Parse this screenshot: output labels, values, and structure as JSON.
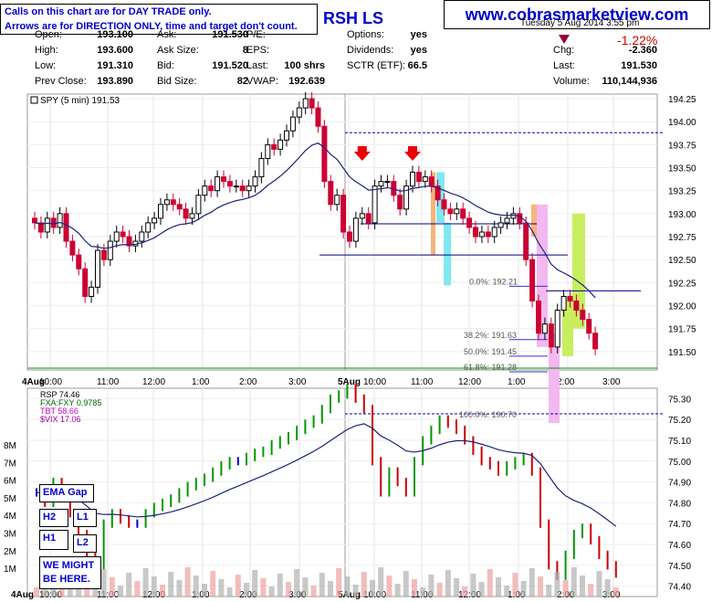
{
  "header": {
    "note_line1": "Calls on this chart are for DAY TRADE only.",
    "note_line2": "Arrows are for DIRECTION ONLY, time and target don't count.",
    "ticker": "RSH  LS",
    "website": "www.cobrasmarketview.com",
    "date_partial": "Tuesday 5 Aug 2014 3:55 pm",
    "change_pct": "-1.22%"
  },
  "quote": [
    {
      "label": "Open:",
      "value": "193.100"
    },
    {
      "label": "High:",
      "value": "193.600"
    },
    {
      "label": "Low:",
      "value": "191.310"
    },
    {
      "label": "Prev Close:",
      "value": "193.890"
    },
    {
      "label": "Ask:",
      "value": "191.530"
    },
    {
      "label": "Ask Size:",
      "value": "8"
    },
    {
      "label": "Bid:",
      "value": "191.520"
    },
    {
      "label": "Bid Size:",
      "value": "82"
    },
    {
      "label": "P/E:",
      "value": ""
    },
    {
      "label": "EPS:",
      "value": ""
    },
    {
      "label": "Last:",
      "value": "100 shrs"
    },
    {
      "label": "VWAP:",
      "value": "192.639"
    },
    {
      "label": "Options:",
      "value": "yes"
    },
    {
      "label": "Dividends:",
      "value": "yes"
    },
    {
      "label": "SCTR (ETF):",
      "value": "66.5"
    },
    {
      "label": "Chg:",
      "value": "-2.360"
    },
    {
      "label": "Last:",
      "value": "191.530"
    },
    {
      "label": "Volume:",
      "value": "110,144,936"
    }
  ],
  "annotations": {
    "ema_gap": "EMA Gap",
    "h2": "H2",
    "l1": "L1",
    "h1": "H1",
    "l2": "L2",
    "might_line1": "WE MIGHT",
    "might_line2": "BE HERE."
  },
  "colors": {
    "up": "#000000",
    "down": "#cc0033",
    "ema": "#1a237e",
    "rsp_up": "#009900",
    "rsp_down": "#cc0000",
    "rsp_flat": "#0000cc",
    "annotation": "#0000cc"
  },
  "chart_data": [
    {
      "type": "candlestick",
      "title": "SPY (5 min) 191.53",
      "ylim": [
        191.3,
        194.3
      ],
      "y_ticks": [
        "194.25",
        "194.00",
        "193.75",
        "193.50",
        "193.25",
        "193.00",
        "192.75",
        "192.50",
        "192.25",
        "192.00",
        "191.75",
        "191.50"
      ],
      "x_ticks": [
        "4Aug",
        "10:00",
        "11:00",
        "12:00",
        "1:00",
        "2:00",
        "3:00",
        "5Aug",
        "10:00",
        "11:00",
        "12:00",
        "1:00",
        "2:00",
        "3:00"
      ],
      "close_series": [
        192.9,
        192.8,
        192.95,
        192.85,
        193.0,
        192.7,
        192.55,
        192.4,
        192.1,
        192.2,
        192.6,
        192.5,
        192.7,
        192.8,
        192.75,
        192.65,
        192.7,
        192.8,
        192.9,
        192.95,
        193.1,
        193.15,
        193.1,
        193.05,
        192.95,
        193.0,
        193.2,
        193.3,
        193.25,
        193.4,
        193.35,
        193.3,
        193.3,
        193.25,
        193.3,
        193.4,
        193.6,
        193.75,
        193.7,
        193.8,
        193.9,
        194.05,
        194.15,
        194.25,
        194.15,
        193.95,
        193.35,
        193.1,
        193.2,
        192.8,
        192.7,
        192.95,
        193.0,
        192.9,
        193.3,
        193.35,
        193.35,
        193.2,
        193.05,
        193.3,
        193.45,
        193.35,
        193.4,
        193.3,
        193.15,
        193.05,
        193.0,
        193.05,
        192.95,
        192.85,
        192.75,
        192.8,
        192.75,
        192.85,
        192.9,
        192.95,
        193.0,
        192.9,
        192.5,
        192.05,
        191.7,
        191.8,
        191.55,
        191.95,
        192.1,
        192.05,
        191.95,
        191.85,
        191.7,
        191.53
      ],
      "horizontal_lines": [
        {
          "label": "",
          "y": 193.88
        },
        {
          "label": "",
          "y": 192.89
        },
        {
          "label": "",
          "y": 192.55
        },
        {
          "label": "",
          "y": 192.16
        }
      ],
      "fib_levels": [
        {
          "label": "0.0%: 192.21",
          "value": 192.21
        },
        {
          "label": "38.2%: 191.63",
          "value": 191.63
        },
        {
          "label": "50.0%: 191.45",
          "value": 191.45
        },
        {
          "label": "61.8%: 191.28",
          "value": 191.28
        },
        {
          "label": "100.0%: 190.70",
          "value": 190.7
        }
      ],
      "arrows": [
        {
          "direction": "down",
          "x_index": 52
        },
        {
          "direction": "down",
          "x_index": 60
        }
      ]
    },
    {
      "type": "line",
      "title": "RSP 74.46",
      "legend": [
        "RSP 74.46",
        "FXA:FXY 0.9785",
        "TBT 58.66",
        "$VIX 17.06"
      ],
      "ylim": [
        74.35,
        75.35
      ],
      "y_ticks": [
        "75.30",
        "75.20",
        "75.10",
        "75.00",
        "74.90",
        "74.80",
        "74.70",
        "74.60",
        "74.50",
        "74.40"
      ],
      "volume_ticks": [
        "8M",
        "7M",
        "6M",
        "5M",
        "4M",
        "3M",
        "2M",
        "1M"
      ],
      "x_ticks": [
        "4Aug",
        "10:00",
        "11:00",
        "12:00",
        "1:00",
        "2:00",
        "3:00",
        "5Aug",
        "10:00",
        "11:00",
        "12:00",
        "1:00",
        "2:00",
        "3:00"
      ],
      "close_series": [
        74.85,
        74.8,
        74.9,
        74.85,
        74.75,
        74.65,
        74.55,
        74.5,
        74.7,
        74.75,
        74.72,
        74.7,
        74.7,
        74.75,
        74.78,
        74.8,
        74.82,
        74.85,
        74.88,
        74.9,
        74.92,
        74.95,
        74.98,
        75.0,
        75.0,
        75.02,
        75.04,
        75.05,
        75.08,
        75.1,
        75.12,
        75.15,
        75.18,
        75.2,
        75.25,
        75.3,
        75.32,
        75.35,
        75.3,
        75.25,
        75.0,
        74.85,
        74.95,
        74.9,
        74.85,
        75.0,
        75.1,
        75.15,
        75.2,
        75.18,
        75.15,
        75.1,
        75.05,
        75.0,
        74.98,
        74.95,
        74.98,
        75.0,
        75.02,
        74.95,
        74.7,
        74.5,
        74.45,
        74.55,
        74.65,
        74.68,
        74.62,
        74.55,
        74.5,
        74.46
      ]
    }
  ]
}
